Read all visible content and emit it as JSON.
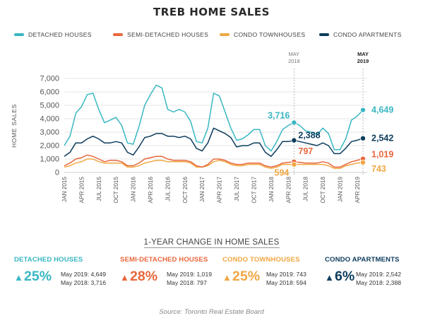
{
  "title": "TREB HOME SALES",
  "colors": {
    "detached": "#3ab7c2",
    "semi": "#e8673c",
    "townhouse": "#f0a743",
    "apartment": "#0c3c5c",
    "axis_text": "#555555",
    "grid": "#dddddd"
  },
  "legend": [
    {
      "label": "DETACHED HOUSES",
      "color": "#3ab7c2"
    },
    {
      "label": "SEMI-DETACHED HOUSES",
      "color": "#e8673c"
    },
    {
      "label": "CONDO TOWNHOUSES",
      "color": "#f0a743"
    },
    {
      "label": "CONDO APARTMENTS",
      "color": "#0c3c5c"
    }
  ],
  "chart_data": {
    "type": "line",
    "title": "TREB HOME SALES",
    "xlabel": "",
    "ylabel": "HOME SALES",
    "ylim": [
      0,
      7000
    ],
    "yticks": [
      0,
      1000,
      2000,
      3000,
      4000,
      5000,
      6000,
      7000
    ],
    "ytick_labels": [
      "0",
      "1,000",
      "2,000",
      "3,000",
      "4,000",
      "5,000",
      "6,000",
      "7,000"
    ],
    "grid": true,
    "legend_position": "top",
    "x": [
      "2015-01",
      "2015-02",
      "2015-03",
      "2015-04",
      "2015-05",
      "2015-06",
      "2015-07",
      "2015-08",
      "2015-09",
      "2015-10",
      "2015-11",
      "2015-12",
      "2016-01",
      "2016-02",
      "2016-03",
      "2016-04",
      "2016-05",
      "2016-06",
      "2016-07",
      "2016-08",
      "2016-09",
      "2016-10",
      "2016-11",
      "2016-12",
      "2017-01",
      "2017-02",
      "2017-03",
      "2017-04",
      "2017-05",
      "2017-06",
      "2017-07",
      "2017-08",
      "2017-09",
      "2017-10",
      "2017-11",
      "2017-12",
      "2018-01",
      "2018-02",
      "2018-03",
      "2018-04",
      "2018-05",
      "2018-06",
      "2018-07",
      "2018-08",
      "2018-09",
      "2018-10",
      "2018-11",
      "2018-12",
      "2019-01",
      "2019-02",
      "2019-03",
      "2019-04",
      "2019-05"
    ],
    "x_tick_labels": [
      "JAN 2015",
      "APR 2015",
      "JUL 2015",
      "OCT 2015",
      "JAN 2016",
      "APR 2016",
      "JUL 2016",
      "OCT 2016",
      "JAN 2017",
      "APR 2017",
      "JUL 2017",
      "OCT 2017",
      "JAN 2018",
      "APR 2018",
      "JUL 2018",
      "OCT 2018",
      "JAN 2019",
      "APR 2019"
    ],
    "series": [
      {
        "name": "DETACHED HOUSES",
        "values": [
          2000,
          2700,
          4400,
          4900,
          5800,
          5900,
          4700,
          3700,
          3900,
          4100,
          3500,
          2200,
          2100,
          3400,
          5000,
          5800,
          6500,
          6300,
          4700,
          4500,
          4700,
          4500,
          3800,
          2300,
          2200,
          3300,
          5900,
          5700,
          4500,
          3300,
          2400,
          2500,
          2800,
          3200,
          3200,
          2000,
          1600,
          2300,
          3200,
          3500,
          3716,
          3500,
          3100,
          3000,
          2800,
          3300,
          2900,
          1700,
          1700,
          2500,
          3900,
          4200,
          4649
        ]
      },
      {
        "name": "SEMI-DETACHED HOUSES",
        "values": [
          500,
          700,
          1000,
          1100,
          1300,
          1200,
          1000,
          800,
          900,
          900,
          800,
          500,
          500,
          700,
          1000,
          1100,
          1200,
          1200,
          1000,
          900,
          900,
          900,
          800,
          500,
          400,
          600,
          1000,
          1000,
          900,
          700,
          600,
          600,
          700,
          700,
          700,
          500,
          400,
          500,
          700,
          750,
          797,
          750,
          700,
          700,
          700,
          800,
          700,
          400,
          400,
          600,
          800,
          900,
          1019
        ]
      },
      {
        "name": "CONDO TOWNHOUSES",
        "values": [
          400,
          500,
          700,
          800,
          1000,
          1000,
          800,
          700,
          700,
          700,
          700,
          400,
          400,
          500,
          700,
          800,
          900,
          900,
          800,
          800,
          800,
          800,
          700,
          400,
          400,
          500,
          800,
          900,
          800,
          600,
          500,
          500,
          600,
          600,
          600,
          400,
          300,
          400,
          600,
          600,
          594,
          600,
          600,
          600,
          600,
          600,
          500,
          300,
          300,
          500,
          600,
          700,
          743
        ]
      },
      {
        "name": "CONDO APARTMENTS",
        "values": [
          1200,
          1500,
          2200,
          2200,
          2500,
          2700,
          2500,
          2200,
          2200,
          2300,
          2200,
          1500,
          1300,
          1900,
          2600,
          2700,
          2900,
          2900,
          2700,
          2700,
          2600,
          2700,
          2500,
          1800,
          1600,
          2200,
          3300,
          3100,
          2900,
          2600,
          1900,
          2000,
          2000,
          2200,
          2200,
          1500,
          1200,
          1700,
          2300,
          2300,
          2388,
          2300,
          2200,
          2100,
          2000,
          2200,
          2000,
          1400,
          1400,
          1800,
          2300,
          2400,
          2542
        ]
      }
    ],
    "markers": [
      {
        "label": "MAY 2018",
        "x": "2018-05"
      },
      {
        "label": "MAY 2019",
        "x": "2019-05"
      }
    ],
    "annotations": {
      "may2018": [
        "3,716",
        "797",
        "594",
        "2,388"
      ],
      "may2019": [
        "4,649",
        "1,019",
        "743",
        "2,542"
      ]
    }
  },
  "change": {
    "title": "1-YEAR CHANGE IN HOME SALES",
    "panels": [
      {
        "name": "DETACHED HOUSES",
        "color": "#3ab7c2",
        "pct": "25%",
        "may2019": "May 2019: 4,649",
        "may2018": "May 2018: 3,716"
      },
      {
        "name": "SEMI-DETACHED HOUSES",
        "color": "#e8673c",
        "pct": "28%",
        "may2019": "May 2019: 1,019",
        "may2018": "May 2018: 797"
      },
      {
        "name": "CONDO TOWNHOUSES",
        "color": "#f0a743",
        "pct": "25%",
        "may2019": "May 2019: 743",
        "may2018": "May 2018: 594"
      },
      {
        "name": "CONDO APARTMENTS",
        "color": "#0c3c5c",
        "pct": "6%",
        "may2019": "May 2019: 2,542",
        "may2018": "May 2018: 2,388"
      }
    ],
    "arrow_icon": "▲"
  },
  "source": "Source: Toronto Real Estate Board"
}
